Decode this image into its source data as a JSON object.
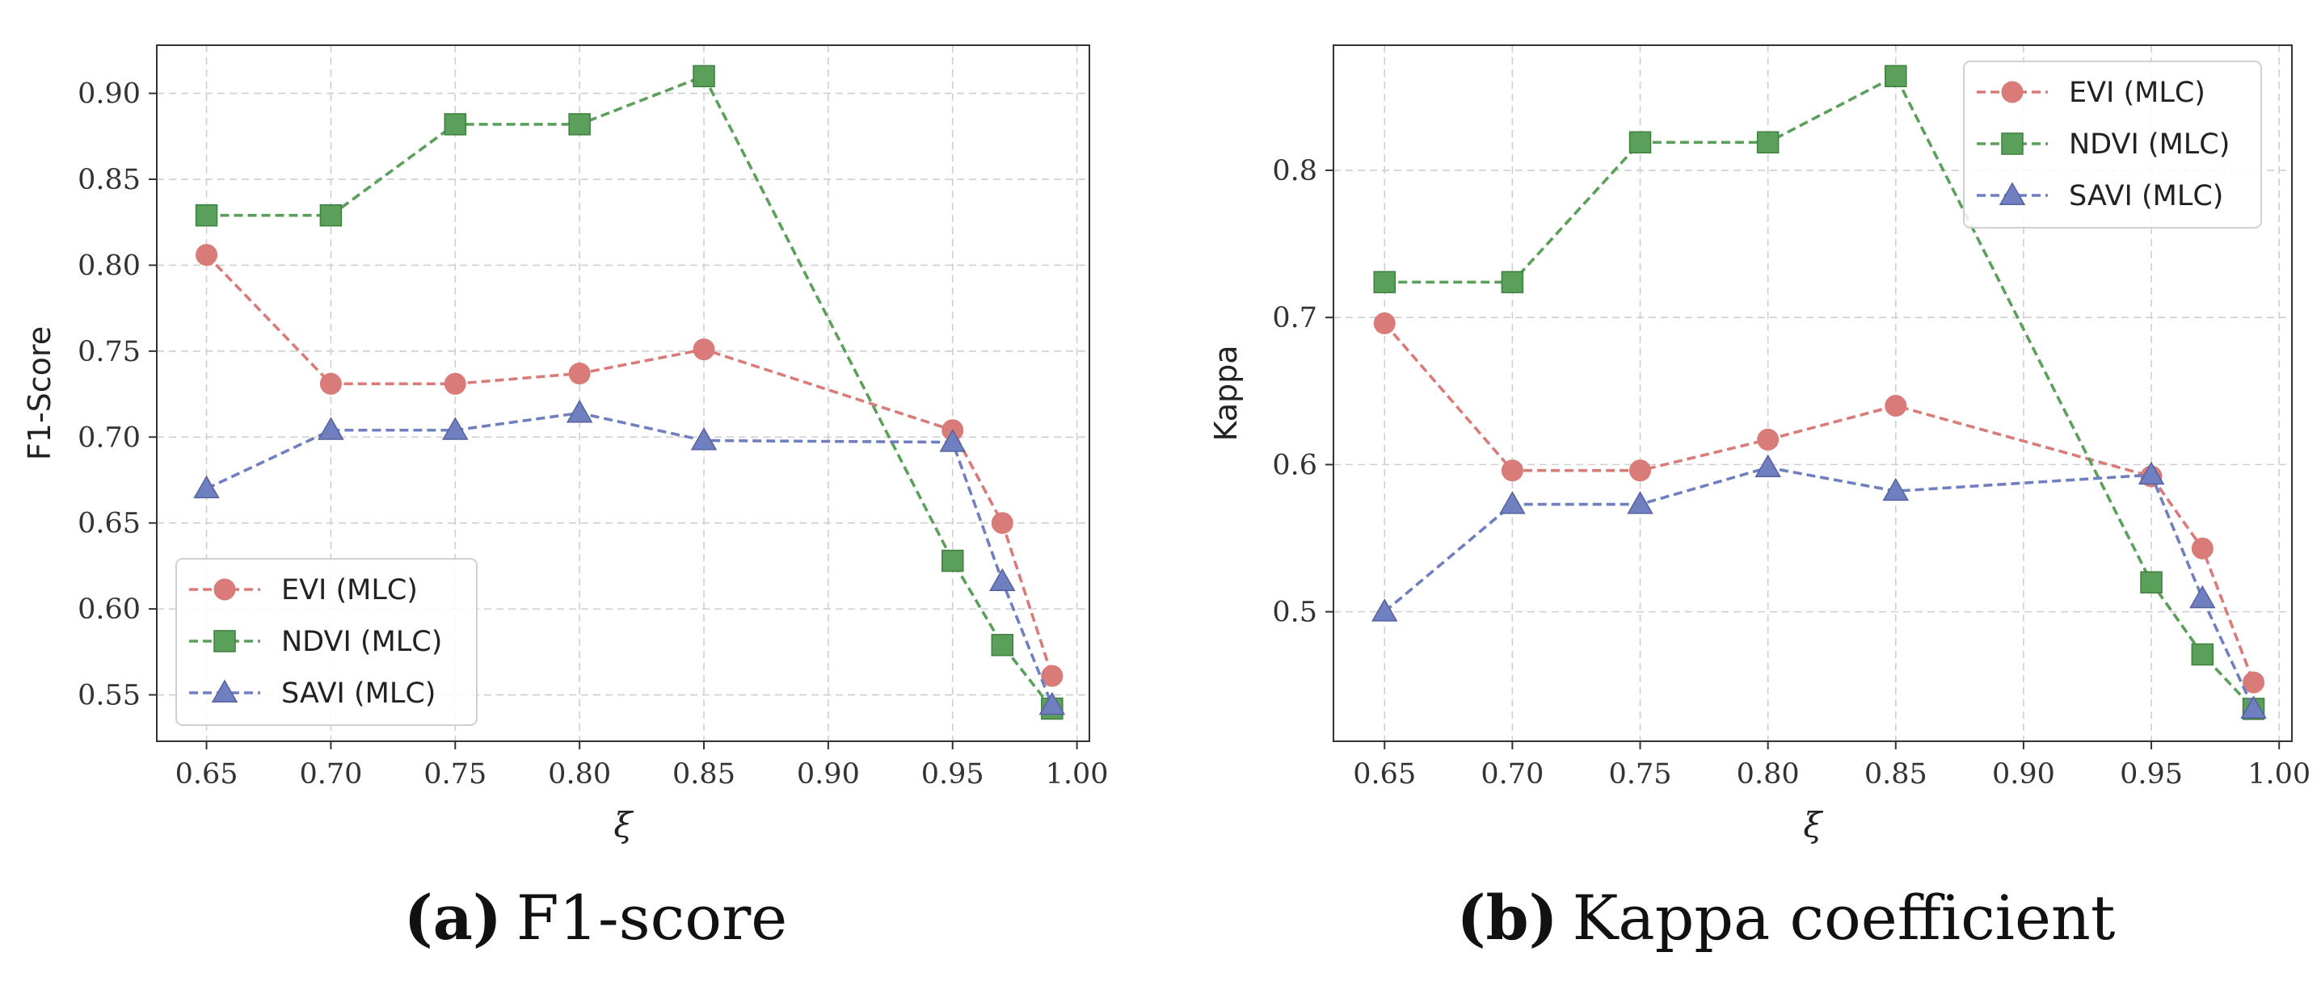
{
  "chart_data": [
    {
      "type": "line",
      "id": "a",
      "caption_letter": "(a)",
      "caption_text": "F1-score",
      "xlabel": "ξ",
      "ylabel": "F1-Score",
      "xlim": [
        0.63,
        1.005
      ],
      "ylim": [
        0.523,
        0.928
      ],
      "xticks": [
        0.65,
        0.7,
        0.75,
        0.8,
        0.85,
        0.9,
        0.95,
        1.0
      ],
      "xtick_labels": [
        "0.65",
        "0.70",
        "0.75",
        "0.80",
        "0.85",
        "0.90",
        "0.95",
        "1.00"
      ],
      "yticks": [
        0.55,
        0.6,
        0.65,
        0.7,
        0.75,
        0.8,
        0.85,
        0.9
      ],
      "ytick_labels": [
        "0.55",
        "0.60",
        "0.65",
        "0.70",
        "0.75",
        "0.80",
        "0.85",
        "0.90"
      ],
      "grid": true,
      "legend_position": "lower-left",
      "x": [
        0.65,
        0.7,
        0.75,
        0.8,
        0.85,
        0.95,
        0.97,
        0.99
      ],
      "series": [
        {
          "name": "EVI (MLC)",
          "color": "#d97b78",
          "marker": "circle",
          "values": [
            0.806,
            0.731,
            0.731,
            0.737,
            0.751,
            0.704,
            0.65,
            0.561
          ]
        },
        {
          "name": "NDVI (MLC)",
          "color": "#5a9f5a",
          "marker": "square",
          "values": [
            0.829,
            0.829,
            0.882,
            0.882,
            0.91,
            0.628,
            0.579,
            0.542
          ]
        },
        {
          "name": "SAVI (MLC)",
          "color": "#6f7fc0",
          "marker": "triangle",
          "values": [
            0.67,
            0.704,
            0.704,
            0.714,
            0.698,
            0.697,
            0.616,
            0.544
          ]
        }
      ]
    },
    {
      "type": "line",
      "id": "b",
      "caption_letter": "(b)",
      "caption_text": "Kappa coefficient",
      "xlabel": "ξ",
      "ylabel": "Kappa",
      "xlim": [
        0.63,
        1.005
      ],
      "ylim": [
        0.412,
        0.885
      ],
      "xticks": [
        0.65,
        0.7,
        0.75,
        0.8,
        0.85,
        0.9,
        0.95,
        1.0
      ],
      "xtick_labels": [
        "0.65",
        "0.70",
        "0.75",
        "0.80",
        "0.85",
        "0.90",
        "0.95",
        "1.00"
      ],
      "yticks": [
        0.5,
        0.6,
        0.7,
        0.8
      ],
      "ytick_labels": [
        "0.5",
        "0.6",
        "0.7",
        "0.8"
      ],
      "grid": true,
      "legend_position": "upper-right",
      "x": [
        0.65,
        0.7,
        0.75,
        0.8,
        0.85,
        0.95,
        0.97,
        0.99
      ],
      "series": [
        {
          "name": "EVI (MLC)",
          "color": "#d97b78",
          "marker": "circle",
          "values": [
            0.696,
            0.596,
            0.596,
            0.617,
            0.64,
            0.592,
            0.543,
            0.452
          ]
        },
        {
          "name": "NDVI (MLC)",
          "color": "#5a9f5a",
          "marker": "square",
          "values": [
            0.724,
            0.724,
            0.819,
            0.819,
            0.864,
            0.52,
            0.471,
            0.434
          ]
        },
        {
          "name": "SAVI (MLC)",
          "color": "#6f7fc0",
          "marker": "triangle",
          "values": [
            0.5,
            0.573,
            0.573,
            0.598,
            0.582,
            0.593,
            0.509,
            0.434
          ]
        }
      ]
    }
  ]
}
